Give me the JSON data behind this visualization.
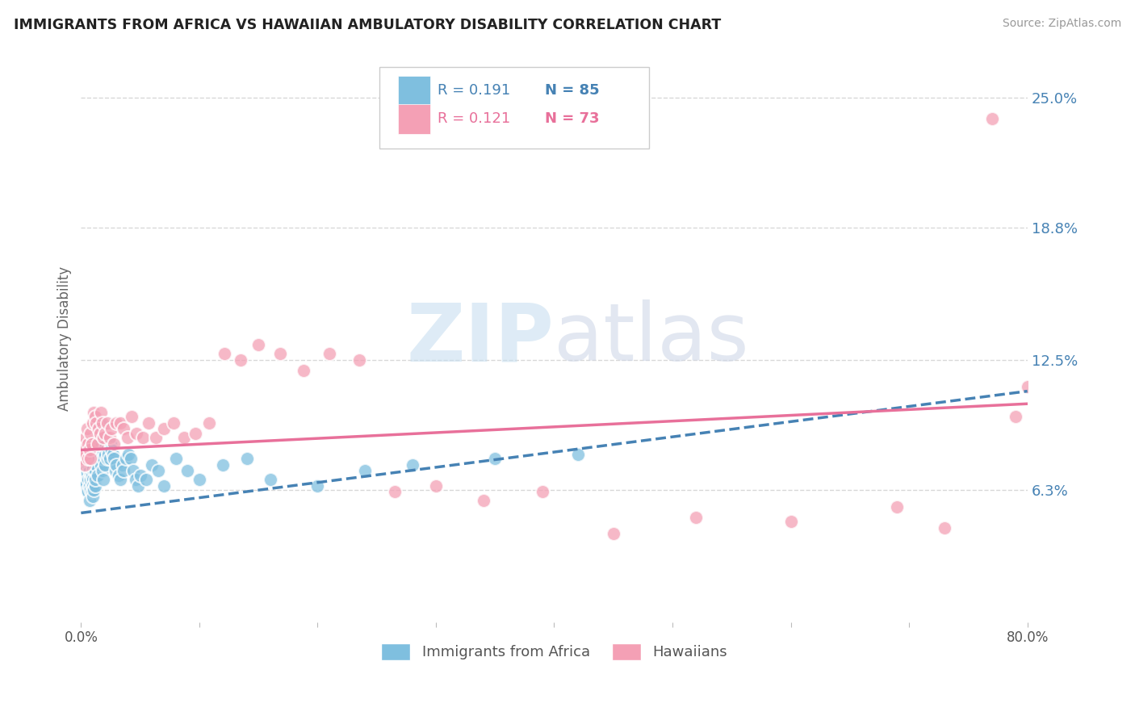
{
  "title": "IMMIGRANTS FROM AFRICA VS HAWAIIAN AMBULATORY DISABILITY CORRELATION CHART",
  "source": "Source: ZipAtlas.com",
  "ylabel": "Ambulatory Disability",
  "xlim": [
    0.0,
    0.8
  ],
  "ylim": [
    0.0,
    0.27
  ],
  "xticks": [
    0.0,
    0.1,
    0.2,
    0.3,
    0.4,
    0.5,
    0.6,
    0.7,
    0.8
  ],
  "ytick_labels_right": [
    "6.3%",
    "12.5%",
    "18.8%",
    "25.0%"
  ],
  "ytick_vals_right": [
    0.063,
    0.125,
    0.188,
    0.25
  ],
  "color_blue": "#7fbfdf",
  "color_pink": "#f4a0b5",
  "color_blue_text": "#4682b4",
  "color_pink_text": "#e8709a",
  "watermark": "ZIPatlas",
  "background_color": "#ffffff",
  "grid_color": "#d8d8d8",
  "series1_label": "Immigrants from Africa",
  "series2_label": "Hawaiians",
  "africa_x": [
    0.001,
    0.002,
    0.002,
    0.003,
    0.003,
    0.003,
    0.004,
    0.004,
    0.005,
    0.005,
    0.005,
    0.006,
    0.006,
    0.006,
    0.007,
    0.007,
    0.007,
    0.008,
    0.008,
    0.008,
    0.009,
    0.009,
    0.009,
    0.01,
    0.01,
    0.01,
    0.01,
    0.011,
    0.011,
    0.012,
    0.012,
    0.012,
    0.013,
    0.013,
    0.014,
    0.014,
    0.015,
    0.015,
    0.016,
    0.016,
    0.017,
    0.017,
    0.018,
    0.018,
    0.019,
    0.019,
    0.02,
    0.02,
    0.021,
    0.022,
    0.022,
    0.023,
    0.024,
    0.025,
    0.026,
    0.027,
    0.028,
    0.029,
    0.03,
    0.032,
    0.033,
    0.035,
    0.036,
    0.038,
    0.04,
    0.042,
    0.044,
    0.046,
    0.048,
    0.05,
    0.055,
    0.06,
    0.065,
    0.07,
    0.08,
    0.09,
    0.1,
    0.12,
    0.14,
    0.16,
    0.2,
    0.24,
    0.28,
    0.35,
    0.42
  ],
  "africa_y": [
    0.075,
    0.073,
    0.068,
    0.076,
    0.065,
    0.07,
    0.072,
    0.066,
    0.069,
    0.063,
    0.071,
    0.075,
    0.062,
    0.068,
    0.072,
    0.065,
    0.058,
    0.07,
    0.063,
    0.068,
    0.075,
    0.062,
    0.07,
    0.068,
    0.073,
    0.06,
    0.065,
    0.078,
    0.063,
    0.072,
    0.065,
    0.068,
    0.082,
    0.075,
    0.08,
    0.07,
    0.092,
    0.078,
    0.095,
    0.085,
    0.088,
    0.075,
    0.082,
    0.072,
    0.078,
    0.068,
    0.08,
    0.075,
    0.085,
    0.078,
    0.082,
    0.08,
    0.078,
    0.085,
    0.082,
    0.08,
    0.078,
    0.072,
    0.075,
    0.07,
    0.068,
    0.075,
    0.072,
    0.078,
    0.08,
    0.078,
    0.072,
    0.068,
    0.065,
    0.07,
    0.068,
    0.075,
    0.072,
    0.065,
    0.078,
    0.072,
    0.068,
    0.075,
    0.078,
    0.068,
    0.065,
    0.072,
    0.075,
    0.078,
    0.08
  ],
  "hawaii_x": [
    0.001,
    0.002,
    0.003,
    0.003,
    0.004,
    0.004,
    0.005,
    0.006,
    0.006,
    0.007,
    0.008,
    0.008,
    0.009,
    0.01,
    0.011,
    0.012,
    0.013,
    0.014,
    0.015,
    0.016,
    0.017,
    0.018,
    0.019,
    0.02,
    0.022,
    0.024,
    0.026,
    0.028,
    0.03,
    0.033,
    0.036,
    0.039,
    0.043,
    0.047,
    0.052,
    0.057,
    0.063,
    0.07,
    0.078,
    0.087,
    0.097,
    0.108,
    0.121,
    0.135,
    0.15,
    0.168,
    0.188,
    0.21,
    0.235,
    0.265,
    0.3,
    0.34,
    0.39,
    0.45,
    0.52,
    0.6,
    0.69,
    0.73,
    0.77,
    0.79,
    0.8
  ],
  "hawaii_y": [
    0.082,
    0.078,
    0.085,
    0.075,
    0.08,
    0.088,
    0.092,
    0.078,
    0.085,
    0.082,
    0.078,
    0.09,
    0.085,
    0.095,
    0.1,
    0.098,
    0.095,
    0.085,
    0.092,
    0.09,
    0.1,
    0.095,
    0.088,
    0.09,
    0.095,
    0.088,
    0.092,
    0.085,
    0.095,
    0.095,
    0.092,
    0.088,
    0.098,
    0.09,
    0.088,
    0.095,
    0.088,
    0.092,
    0.095,
    0.088,
    0.09,
    0.095,
    0.128,
    0.125,
    0.132,
    0.128,
    0.12,
    0.128,
    0.125,
    0.062,
    0.065,
    0.058,
    0.062,
    0.042,
    0.05,
    0.048,
    0.055,
    0.045,
    0.24,
    0.098,
    0.112
  ],
  "africa_trend_x": [
    0.0,
    0.8
  ],
  "africa_trend_y": [
    0.052,
    0.11
  ],
  "hawaii_trend_x": [
    0.0,
    0.8
  ],
  "hawaii_trend_y": [
    0.082,
    0.104
  ]
}
